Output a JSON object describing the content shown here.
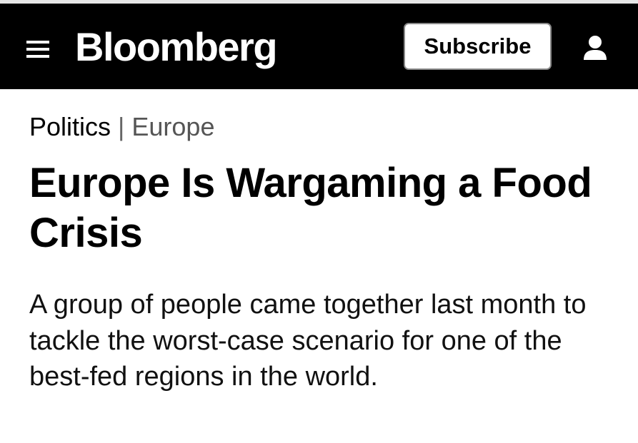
{
  "header": {
    "menu_icon": "hamburger-icon",
    "logo": "Bloomberg",
    "subscribe_label": "Subscribe",
    "user_icon": "person-icon"
  },
  "breadcrumb": {
    "category": "Politics",
    "separator": "|",
    "section": "Europe"
  },
  "article": {
    "headline": "Europe Is Wargaming a Food Crisis",
    "deck": "A group of people came together last month to tackle the worst-case scenario for one of the best-fed regions in the world."
  }
}
